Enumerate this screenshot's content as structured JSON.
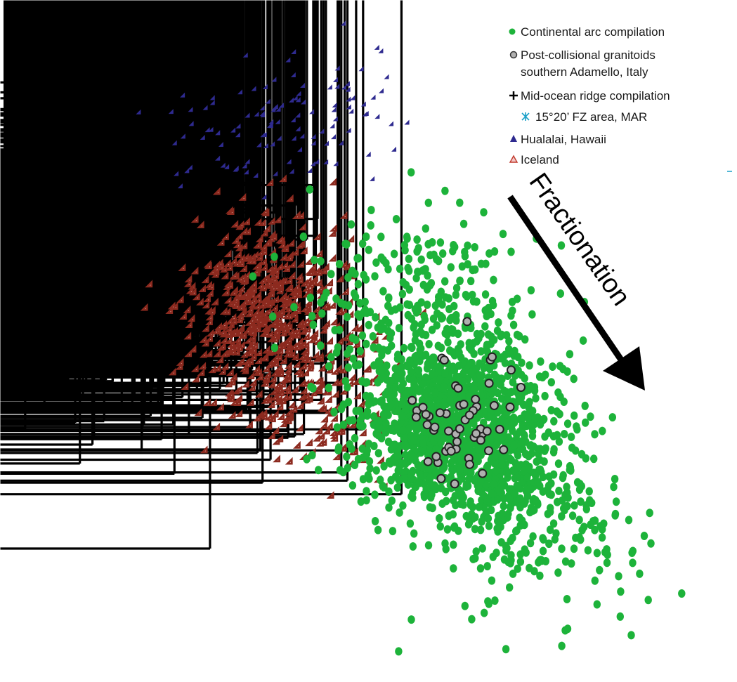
{
  "chart_data": {
    "type": "scatter",
    "title": "",
    "xlabel": "",
    "ylabel": "",
    "xlim": [
      0,
      100
    ],
    "ylim": [
      0,
      100
    ],
    "axes_visible": false,
    "grid": false,
    "legend_position": "top-right",
    "legend": [
      {
        "key": "arc",
        "label": "Continental arc compilation",
        "marker": "circle",
        "color": "#1db33a"
      },
      {
        "key": "adamello",
        "label": "Post-collisional granitoids",
        "label2": "southern Adamello, Italy",
        "marker": "circle-outline",
        "color": "#b0b0b0"
      },
      {
        "key": "mor",
        "label": "Mid-ocean ridge compilation",
        "marker": "plus",
        "color": "#000000"
      },
      {
        "key": "fz",
        "label": "15°20’ FZ area, MAR",
        "marker": "asterisk",
        "color": "#1aa0c8"
      },
      {
        "key": "hualalai",
        "label": "Hualalai, Hawaii",
        "marker": "triangle",
        "color": "#2e2a8f"
      },
      {
        "key": "iceland",
        "label": "Iceland",
        "marker": "triangle-outline",
        "color": "#8c2a1f"
      }
    ],
    "series": [
      {
        "key": "arc",
        "clusters": [
          {
            "cx": 62,
            "cy": 38,
            "sx": 7,
            "sy": 6,
            "n": 1300
          },
          {
            "cx": 70,
            "cy": 28,
            "sx": 6,
            "sy": 5,
            "n": 220
          },
          {
            "cx": 57,
            "cy": 55,
            "sx": 8,
            "sy": 7,
            "n": 260
          },
          {
            "cx": 75,
            "cy": 18,
            "sx": 8,
            "sy": 6,
            "n": 90
          }
        ]
      },
      {
        "key": "mor",
        "clusters": [
          {
            "cx": 14,
            "cy": 62,
            "sx": 9,
            "sy": 8,
            "n": 1700
          },
          {
            "cx": 22,
            "cy": 52,
            "sx": 6,
            "sy": 6,
            "n": 300
          },
          {
            "cx": 33,
            "cy": 45,
            "sx": 10,
            "sy": 8,
            "n": 110
          }
        ]
      },
      {
        "key": "iceland",
        "clusters": [
          {
            "cx": 36,
            "cy": 54,
            "sx": 5,
            "sy": 7,
            "n": 650
          },
          {
            "cx": 44,
            "cy": 42,
            "sx": 6,
            "sy": 6,
            "n": 180
          }
        ]
      },
      {
        "key": "hualalai",
        "clusters": [
          {
            "cx": 38,
            "cy": 82,
            "sx": 7,
            "sy": 5,
            "n": 120
          }
        ]
      },
      {
        "key": "adamello",
        "clusters": [
          {
            "cx": 63,
            "cy": 38,
            "sx": 3.5,
            "sy": 5,
            "n": 55
          }
        ]
      }
    ],
    "annotations": [
      {
        "text": "Fractionation",
        "type": "arrow",
        "from": [
          69,
          72
        ],
        "to": [
          87,
          43
        ]
      }
    ]
  }
}
